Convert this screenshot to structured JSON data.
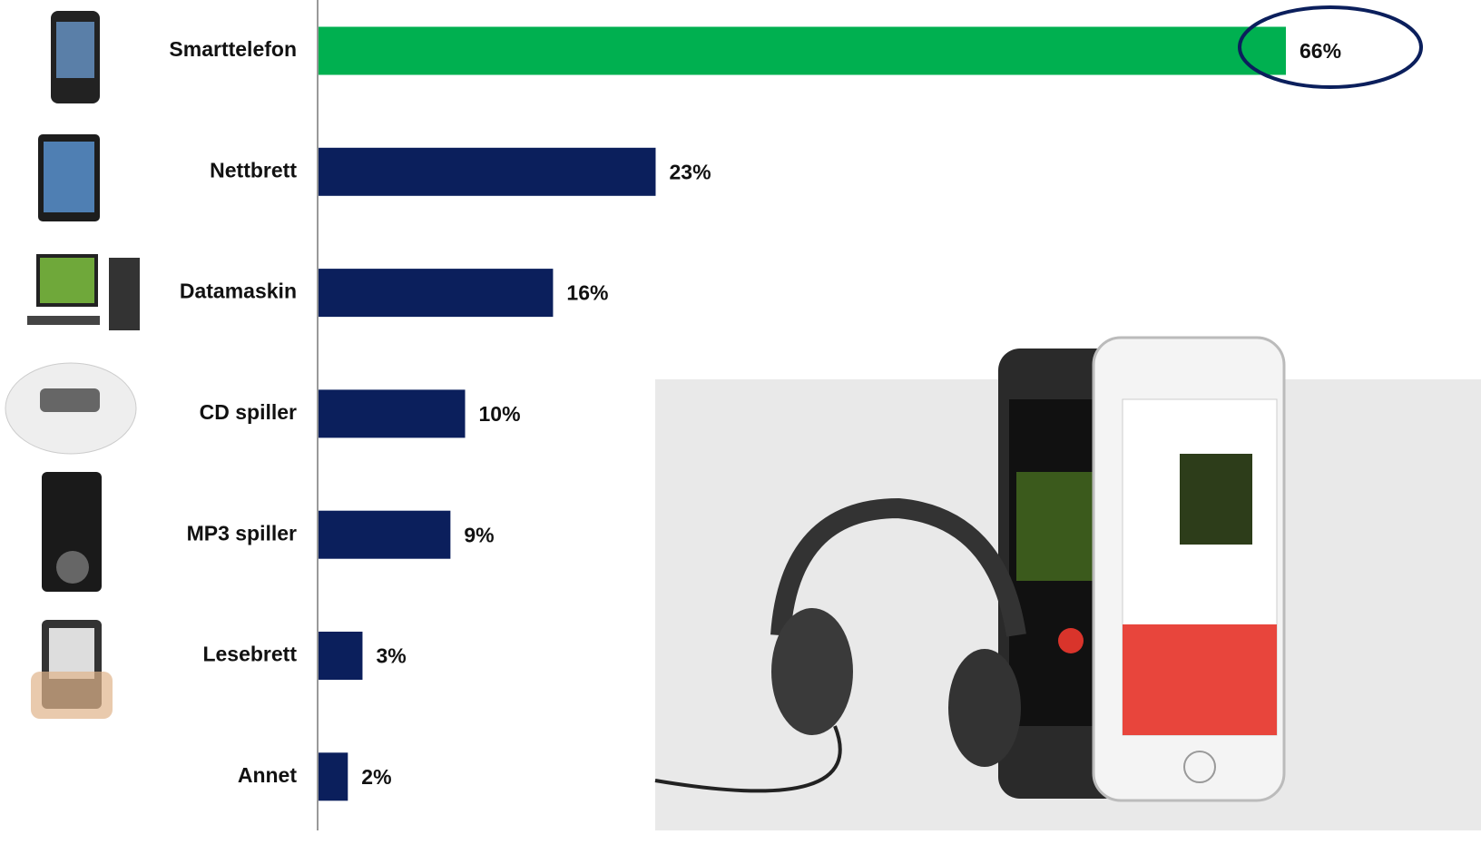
{
  "chart_data": {
    "type": "bar",
    "orientation": "horizontal",
    "categories": [
      "Smarttelefon",
      "Nettbrett",
      "Datamaskin",
      "CD spiller",
      "MP3 spiller",
      "Lesebrett",
      "Annet"
    ],
    "values": [
      66,
      23,
      16,
      10,
      9,
      3,
      2
    ],
    "value_labels": [
      "66%",
      "23%",
      "16%",
      "10%",
      "9%",
      "3%",
      "2%"
    ],
    "colors": [
      "#00b050",
      "#0b1f5c",
      "#0b1f5c",
      "#0b1f5c",
      "#0b1f5c",
      "#0b1f5c",
      "#0b1f5c"
    ]
  }
}
